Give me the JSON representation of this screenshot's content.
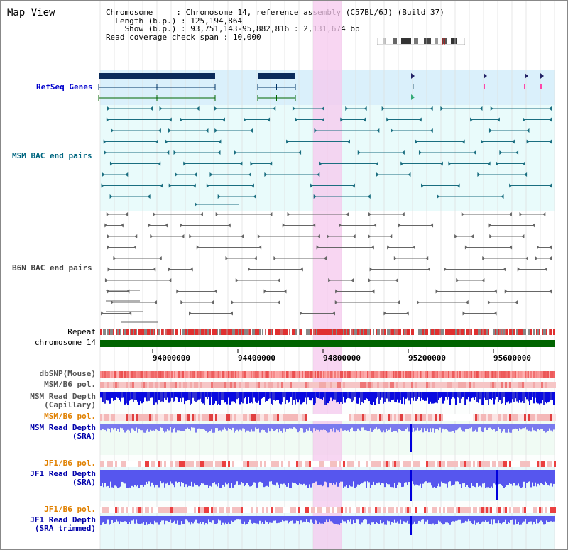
{
  "view_title": "Map View",
  "info": {
    "chromosome_key": "Chromosome",
    "chromosome_val": "Chromosome 14, reference assembly (C57BL/6J) (Build 37)",
    "length_key": "Length (b.p.)",
    "length_val": "125,194,864",
    "show_key": "Show (b.p.)",
    "show_val": "93,751,143-95,882,816 : 2,131,674 bp",
    "span_key": "Read coverage check span",
    "span_val": "10,000"
  },
  "tracks": {
    "refseq": "RefSeq Genes",
    "msm_bac": "MSM BAC end pairs",
    "b6n_bac": "B6N BAC end pairs",
    "repeat": "Repeat",
    "chromosome": "chromosome 14",
    "dbsnp": "dbSNP(Mouse)",
    "msm_b6_pol_1": "MSM/B6 pol.",
    "msm_read_cap_1": "MSM Read Depth",
    "msm_read_cap_2": "(Capillary)",
    "msm_b6_pol_2": "MSM/B6 pol.",
    "msm_read_sra_1": "MSM Read Depth",
    "msm_read_sra_2": "(SRA)",
    "jf1_b6_pol_1": "JF1/B6 pol.",
    "jf1_read_sra_1": "JF1 Read Depth",
    "jf1_read_sra_2": "(SRA)",
    "jf1_b6_pol_2": "JF1/B6 pol.",
    "jf1_read_trim_1": "JF1 Read Depth",
    "jf1_read_trim_2": "(SRA trimmed)"
  },
  "axis_ticks": [
    "94000000",
    "94400000",
    "94800000",
    "95200000",
    "95600000"
  ],
  "colors": {
    "refseq_label": "#0000cc",
    "msm_label": "#006680",
    "b6n_label": "#444444",
    "pol_label": "#e08000",
    "depth_label": "#0000aa",
    "highlight": "#f5c8ee",
    "chromosome_bar": "#006400"
  }
}
